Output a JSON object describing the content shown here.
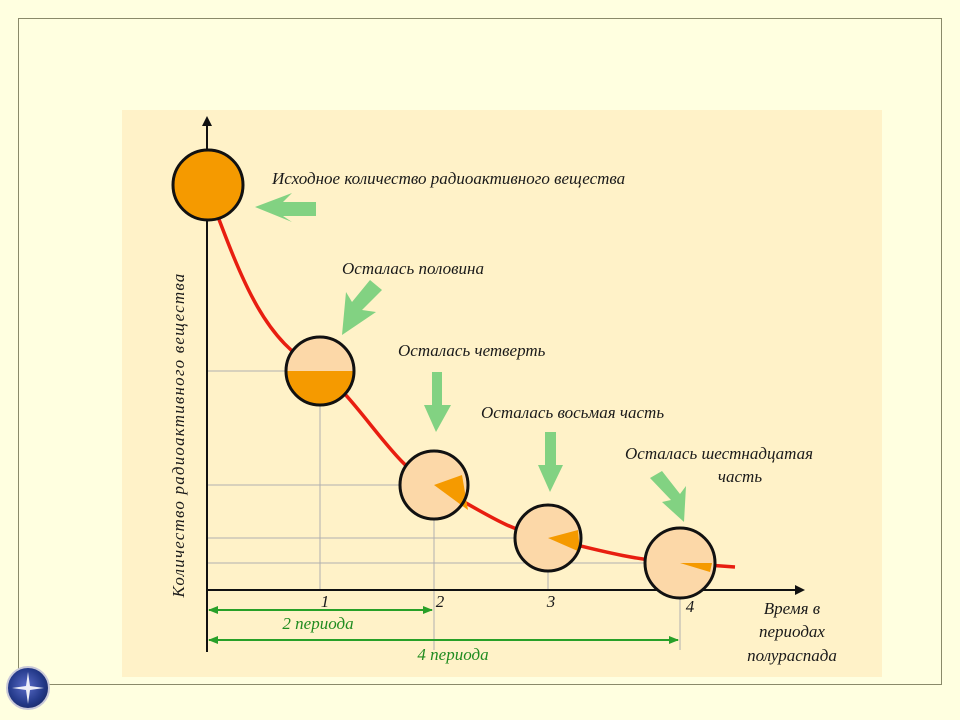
{
  "axis": {
    "y_label": "Количество радиоактивного вещества",
    "x_label_lines": [
      "Время в",
      "периодах",
      "полураспада"
    ],
    "ticks": [
      "1",
      "2",
      "3",
      "4"
    ]
  },
  "labels": {
    "initial": "Исходное количество радиоактивного вещества",
    "half": "Осталась половина",
    "quarter": "Осталась четверть",
    "eighth": "Осталась восьмая часть",
    "sixteenth_lines": [
      "Осталась шестнадцатая",
      "часть"
    ]
  },
  "spans": {
    "two": "2 периода",
    "four": "4 периода"
  },
  "remaining_fractions": [
    1,
    0.5,
    0.25,
    0.125,
    0.0625
  ],
  "colors": {
    "curve": "#e81e10",
    "fill": "#f59a00",
    "circle_bg": "#fcd8a8",
    "arrow": "#82d282",
    "span": "#28a028"
  }
}
